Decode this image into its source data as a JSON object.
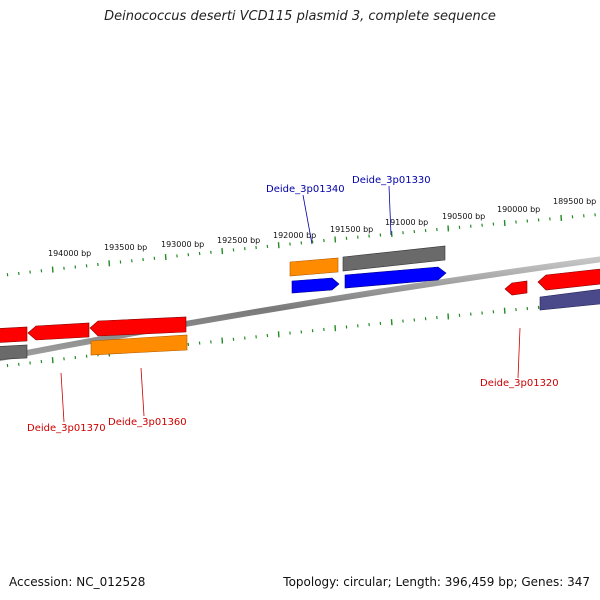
{
  "header": {
    "title": "Deinococcus deserti VCD115 plasmid 3, complete sequence"
  },
  "footer": {
    "accession": "Accession: NC_012528",
    "summary": "Topology: circular; Length: 396,459 bp; Genes: 347"
  },
  "colors": {
    "backbone": "#888888",
    "tick": "#228B22",
    "red_gene": "#ff0000",
    "orange_gene": "#ff8c00",
    "blue_gene": "#0000ff",
    "gray_gene": "#666666",
    "slate_gene": "#4a4a8a",
    "label_red": "#cc0000",
    "label_blue": "#0000aa"
  },
  "ruler": {
    "upper_labels": [
      "194000 bp",
      "193500 bp",
      "193000 bp",
      "192500 bp",
      "192000 bp",
      "191500 bp",
      "191000 bp",
      "190500 bp",
      "190000 bp",
      "189500 bp"
    ]
  },
  "gene_labels": [
    {
      "text": "Deide_3p01340",
      "color": "blue"
    },
    {
      "text": "Deide_3p01330",
      "color": "blue"
    },
    {
      "text": "Deide_3p01320",
      "color": "red"
    },
    {
      "text": "Deide_3p01370",
      "color": "red"
    },
    {
      "text": "Deide_3p01360",
      "color": "red"
    }
  ]
}
